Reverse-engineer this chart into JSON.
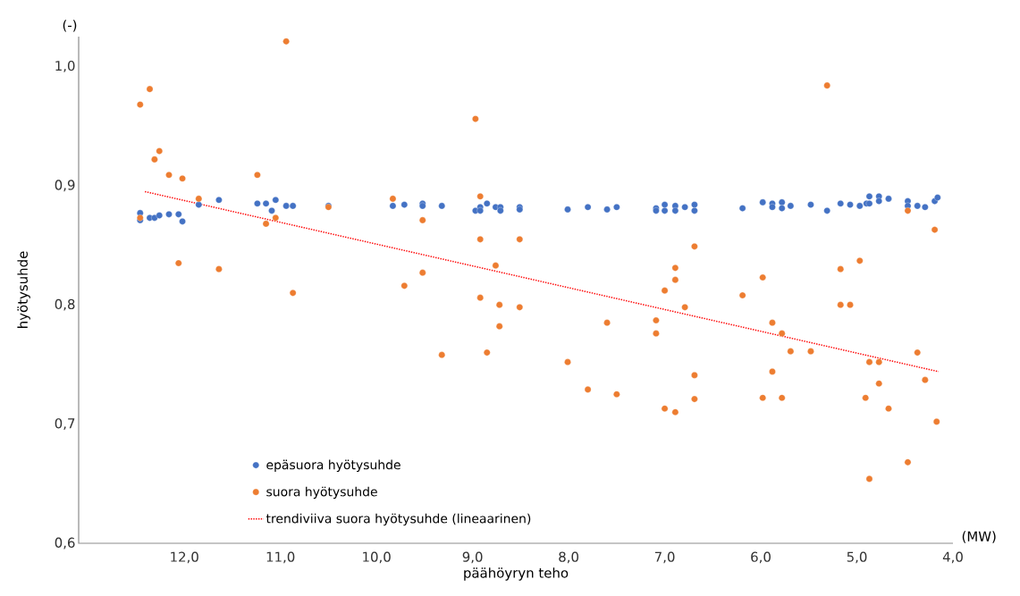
{
  "chart_data": {
    "type": "scatter",
    "xlabel": "päähöyryn teho",
    "ylabel": "hyötysuhde",
    "annotations": [
      "(-)",
      "(MW)"
    ],
    "xlim": [
      13.1,
      4.0
    ],
    "ylim": [
      0.6,
      1.025
    ],
    "xticks": [
      {
        "value": 12,
        "label": "12,0"
      },
      {
        "value": 11,
        "label": "11,0"
      },
      {
        "value": 10,
        "label": "10,0"
      },
      {
        "value": 9,
        "label": "9,0"
      },
      {
        "value": 8,
        "label": "8,0"
      },
      {
        "value": 7,
        "label": "7,0"
      },
      {
        "value": 6,
        "label": "6,0"
      },
      {
        "value": 5,
        "label": "5,0"
      },
      {
        "value": 4,
        "label": "4,0"
      }
    ],
    "yticks": [
      {
        "value": 0.6,
        "label": "0,6"
      },
      {
        "value": 0.7,
        "label": "0,7"
      },
      {
        "value": 0.8,
        "label": "0,8"
      },
      {
        "value": 0.9,
        "label": "0,9"
      },
      {
        "value": 1.0,
        "label": "1,0"
      }
    ],
    "marker": "circle",
    "legend": "bottom left",
    "series": [
      {
        "name": "epäsuora hyötysuhde",
        "color": "#4472c4",
        "x": [
          12.46,
          12.46,
          12.36,
          12.31,
          12.26,
          12.16,
          12.06,
          12.02,
          11.85,
          11.64,
          11.24,
          11.15,
          11.09,
          11.05,
          10.94,
          10.87,
          10.5,
          9.83,
          9.71,
          9.52,
          9.52,
          9.32,
          8.97,
          8.92,
          8.92,
          8.85,
          8.76,
          8.71,
          8.71,
          8.51,
          8.51,
          8.01,
          7.8,
          7.6,
          7.5,
          7.09,
          7.09,
          7.0,
          7.0,
          6.89,
          6.89,
          6.79,
          6.69,
          6.69,
          6.19,
          5.98,
          5.88,
          5.88,
          5.78,
          5.78,
          5.69,
          5.48,
          5.31,
          5.17,
          5.07,
          4.97,
          4.9,
          4.87,
          4.87,
          4.77,
          4.77,
          4.67,
          4.47,
          4.47,
          4.37,
          4.29,
          4.19,
          4.16
        ],
        "values": [
          0.877,
          0.871,
          0.873,
          0.873,
          0.875,
          0.876,
          0.876,
          0.87,
          0.884,
          0.888,
          0.885,
          0.885,
          0.879,
          0.888,
          0.883,
          0.883,
          0.883,
          0.883,
          0.884,
          0.885,
          0.883,
          0.883,
          0.879,
          0.882,
          0.879,
          0.885,
          0.882,
          0.882,
          0.879,
          0.882,
          0.88,
          0.88,
          0.882,
          0.88,
          0.882,
          0.881,
          0.879,
          0.884,
          0.879,
          0.883,
          0.879,
          0.882,
          0.884,
          0.879,
          0.881,
          0.886,
          0.885,
          0.882,
          0.886,
          0.881,
          0.883,
          0.884,
          0.879,
          0.885,
          0.884,
          0.883,
          0.885,
          0.891,
          0.885,
          0.891,
          0.887,
          0.889,
          0.887,
          0.883,
          0.883,
          0.882,
          0.887,
          0.89
        ]
      },
      {
        "name": "suora hyötysuhde",
        "color": "#ed7d31",
        "x": [
          12.46,
          12.36,
          12.31,
          12.26,
          12.16,
          12.02,
          12.46,
          12.06,
          11.85,
          11.64,
          11.24,
          11.15,
          11.05,
          10.94,
          10.87,
          10.5,
          9.83,
          9.71,
          9.52,
          9.52,
          9.32,
          8.97,
          8.92,
          8.92,
          8.92,
          8.85,
          8.76,
          8.72,
          8.72,
          8.51,
          8.51,
          8.01,
          7.8,
          7.6,
          7.5,
          7.09,
          7.09,
          7.0,
          7.0,
          6.89,
          6.89,
          6.89,
          6.79,
          6.69,
          6.69,
          6.69,
          6.19,
          5.98,
          5.98,
          5.88,
          5.88,
          5.78,
          5.78,
          5.69,
          5.48,
          5.31,
          5.17,
          5.07,
          4.97,
          5.17,
          4.91,
          4.87,
          4.77,
          4.77,
          4.87,
          4.67,
          4.47,
          4.47,
          4.37,
          4.29,
          4.19,
          4.17
        ],
        "values": [
          0.968,
          0.981,
          0.922,
          0.929,
          0.909,
          0.906,
          0.873,
          0.835,
          0.889,
          0.83,
          0.909,
          0.868,
          0.873,
          1.021,
          0.81,
          0.882,
          0.889,
          0.816,
          0.871,
          0.827,
          0.758,
          0.956,
          0.891,
          0.855,
          0.806,
          0.76,
          0.833,
          0.8,
          0.782,
          0.855,
          0.798,
          0.752,
          0.729,
          0.785,
          0.725,
          0.787,
          0.776,
          0.812,
          0.713,
          0.831,
          0.821,
          0.71,
          0.798,
          0.849,
          0.741,
          0.721,
          0.808,
          0.823,
          0.722,
          0.785,
          0.744,
          0.776,
          0.722,
          0.761,
          0.761,
          0.984,
          0.83,
          0.8,
          0.837,
          0.8,
          0.722,
          0.752,
          0.752,
          0.734,
          0.654,
          0.713,
          0.879,
          0.668,
          0.76,
          0.737,
          0.863,
          0.702
        ]
      },
      {
        "name": "trendiviiva suora hyötysuhde (lineaarinen)",
        "type": "line",
        "marker": "none",
        "line_style": "dotted",
        "color": "#ff0000",
        "x": [
          12.41,
          4.15
        ],
        "values": [
          0.895,
          0.744
        ]
      }
    ]
  }
}
